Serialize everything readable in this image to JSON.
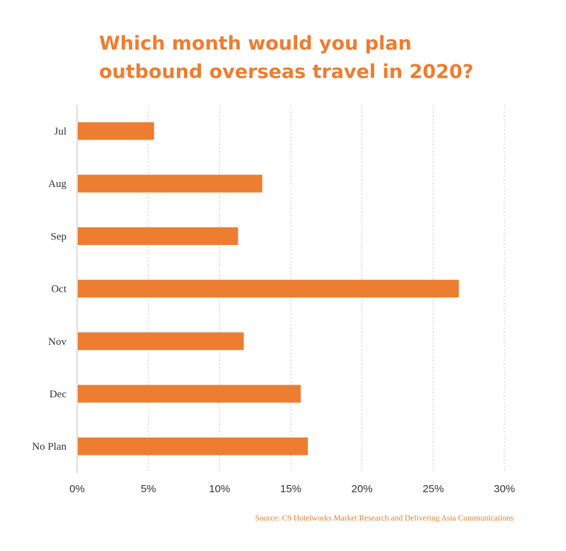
{
  "chart_data": {
    "type": "bar",
    "orientation": "horizontal",
    "title_lines": [
      "Which month would you plan",
      "outbound overseas travel in 2020?"
    ],
    "categories": [
      "Jul",
      "Aug",
      "Sep",
      "Oct",
      "Nov",
      "Dec",
      "No Plan"
    ],
    "values": [
      5.4,
      13.0,
      11.3,
      26.8,
      11.7,
      15.7,
      16.2
    ],
    "xlim": [
      0,
      30
    ],
    "xticks": [
      0,
      5,
      10,
      15,
      20,
      25,
      30
    ],
    "tick_labels": [
      "0%",
      "5%",
      "10%",
      "15%",
      "20%",
      "25%",
      "30%"
    ],
    "value_unit": "%",
    "grid": "vertical-dotted",
    "legend": "none",
    "bar_color": "#ed7d31"
  },
  "source": "Source: C9 Hotelworks Market Research and Delivering Asia Communications",
  "colors": {
    "accent": "#ed7d31",
    "gridline": "#c8c8c8",
    "axis": "#bfbfbf",
    "text": "#333333"
  }
}
